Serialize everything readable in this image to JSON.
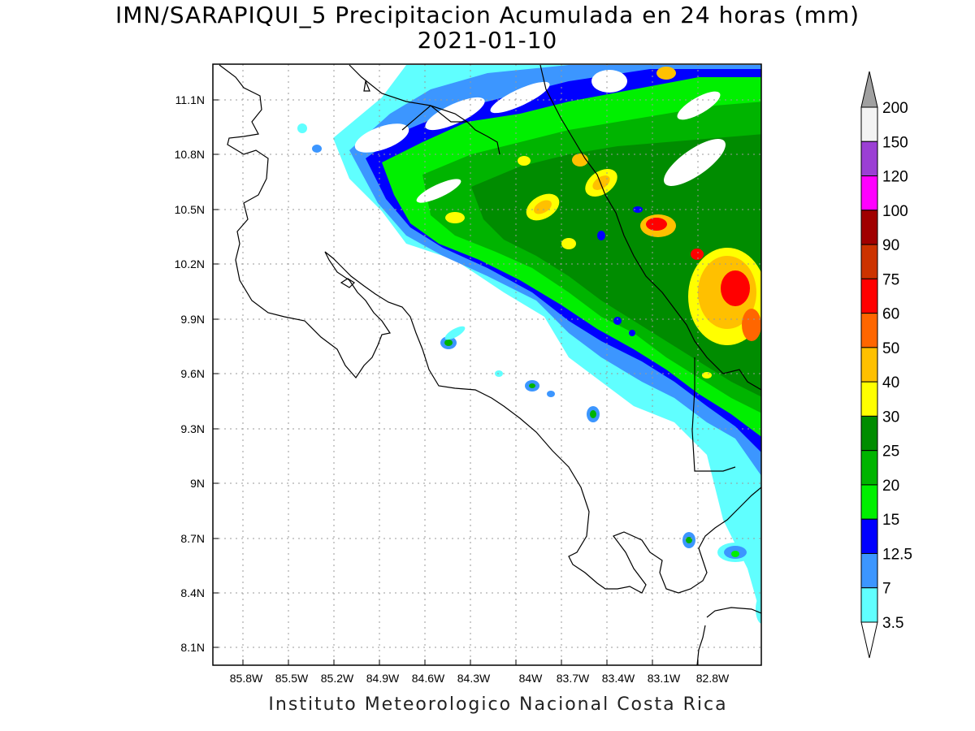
{
  "title": {
    "line1": "IMN/SARAPIQUI_5 Precipitacion Acumulada en 24 horas (mm)",
    "line2": "2021-01-10"
  },
  "axes": {
    "x_ticks": [
      "85.8W",
      "85.5W",
      "85.2W",
      "84.9W",
      "84.6W",
      "84.3W",
      "84W",
      "83.7W",
      "83.4W",
      "83.1W",
      "82.8W"
    ],
    "y_ticks": [
      "11.1N",
      "10.8N",
      "10.5N",
      "10.2N",
      "9.9N",
      "9.6N",
      "9.3N",
      "9N",
      "8.7N",
      "8.4N",
      "8.1N"
    ]
  },
  "colorbar": {
    "labels": [
      "200",
      "150",
      "120",
      "100",
      "90",
      "75",
      "60",
      "50",
      "40",
      "30",
      "25",
      "20",
      "15",
      "12.5",
      "7",
      "3.5"
    ],
    "colors": [
      "#f3f3f3",
      "#9b3fd4",
      "#ff00ff",
      "#a00000",
      "#cc3300",
      "#ff0000",
      "#ff6600",
      "#ffc000",
      "#ffff00",
      "#008c00",
      "#00b400",
      "#00f000",
      "#0000ff",
      "#3c96ff",
      "#60ffff"
    ],
    "over_color": "#a0a0a0"
  },
  "footer": "Instituto Meteorologico Nacional Costa Rica",
  "chart_data": {
    "type": "heatmap",
    "variable": "Precipitacion Acumulada en 24 horas (mm)",
    "date": "2021-01-10",
    "lon_range": [
      "86W",
      "82.6W"
    ],
    "lat_range": [
      "8N",
      "11.3N"
    ],
    "grid": "dotted",
    "legend_placement": "right"
  }
}
